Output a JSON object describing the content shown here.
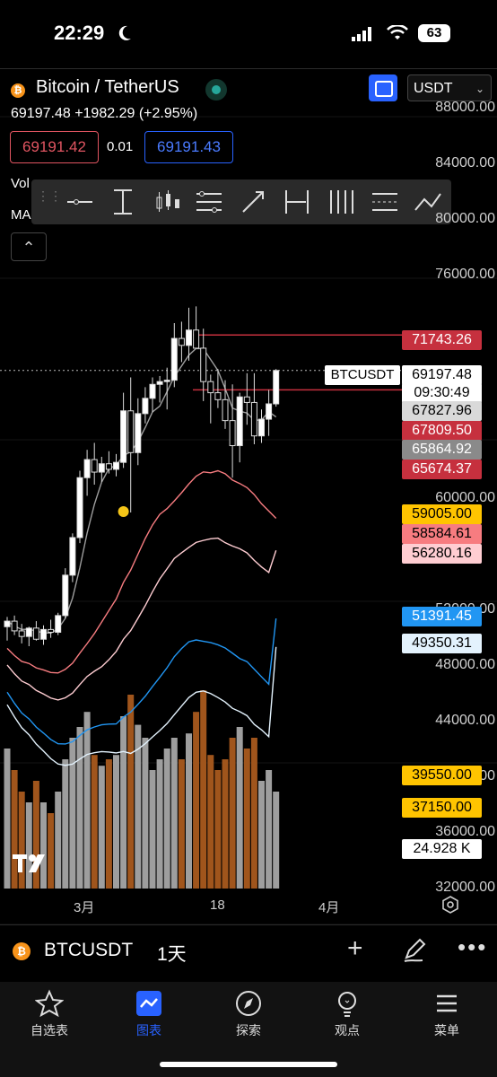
{
  "status_bar": {
    "time": "22:29",
    "battery": "63"
  },
  "header": {
    "title": "Bitcoin / TetherUS",
    "quote_currency": "USDT",
    "last_price": "69197.48",
    "change": "+1982.29 (+2.95%)",
    "bid": "69191.42",
    "spread": "0.01",
    "ask": "69191.43",
    "vol_label": "Vol",
    "ma_label": "MA"
  },
  "price_axis": [
    "88000.00",
    "84000.00",
    "80000.00",
    "76000.00",
    "60000.00",
    "52000.00",
    "48000.00",
    "44000.00",
    "40000.00",
    "36000.00",
    "32000.00"
  ],
  "price_tags": [
    {
      "label": "71743.26",
      "bg": "#c6303e",
      "fg": "#ffffff"
    },
    {
      "label": "69197.48",
      "bg": "#ffffff",
      "fg": "#000000"
    },
    {
      "label": "09:30:49",
      "bg": "#ffffff",
      "fg": "#000000"
    },
    {
      "label": "67827.96",
      "bg": "#d9d9d9",
      "fg": "#000000"
    },
    {
      "label": "67809.50",
      "bg": "#c6303e",
      "fg": "#ffffff"
    },
    {
      "label": "65864.92",
      "bg": "#8a8a8a",
      "fg": "#ffffff"
    },
    {
      "label": "65674.37",
      "bg": "#c6303e",
      "fg": "#ffffff"
    },
    {
      "label": "59005.00",
      "bg": "#ffc400",
      "fg": "#000000"
    },
    {
      "label": "58584.61",
      "bg": "#f77c80",
      "fg": "#000000"
    },
    {
      "label": "56280.16",
      "bg": "#ffcdd2",
      "fg": "#000000"
    },
    {
      "label": "51391.45",
      "bg": "#2196f3",
      "fg": "#ffffff"
    },
    {
      "label": "49350.31",
      "bg": "#e3f2fd",
      "fg": "#000000"
    },
    {
      "label": "39550.00",
      "bg": "#ffc400",
      "fg": "#000000"
    },
    {
      "label": "37150.00",
      "bg": "#ffc400",
      "fg": "#000000"
    },
    {
      "label": "24.928 K",
      "bg": "#ffffff",
      "fg": "#000000"
    }
  ],
  "symbol_label": "BTCUSDT",
  "x_axis": [
    "3月",
    "18",
    "4月"
  ],
  "bottom_bar": {
    "symbol": "BTCUSDT",
    "interval": "1天"
  },
  "tabs": [
    {
      "label": "自选表",
      "icon": "star-icon"
    },
    {
      "label": "图表",
      "icon": "chart-icon"
    },
    {
      "label": "探索",
      "icon": "compass-icon"
    },
    {
      "label": "观点",
      "icon": "lightbulb-icon"
    },
    {
      "label": "菜单",
      "icon": "menu-icon"
    }
  ],
  "colors": {
    "accent": "#2962ff",
    "up": "#ffffff",
    "down": "#ffffff",
    "vol_up": "#9e9e9e",
    "vol_down": "#a0551c"
  },
  "chart_data": {
    "type": "candlestick",
    "interval": "1天",
    "ylim": [
      32000,
      90000
    ],
    "candles": [
      [
        50800,
        51500,
        49800,
        51200
      ],
      [
        51200,
        51600,
        50200,
        50500
      ],
      [
        50500,
        51000,
        49600,
        50100
      ],
      [
        50100,
        50800,
        49400,
        50700
      ],
      [
        50700,
        51200,
        49800,
        49900
      ],
      [
        49900,
        50900,
        49500,
        50600
      ],
      [
        50600,
        51300,
        50000,
        50400
      ],
      [
        50400,
        51800,
        50200,
        51600
      ],
      [
        51600,
        55000,
        51400,
        54500
      ],
      [
        54500,
        57500,
        54000,
        57200
      ],
      [
        57200,
        62000,
        56800,
        61500
      ],
      [
        61500,
        63500,
        60200,
        62800
      ],
      [
        62800,
        64000,
        61000,
        61900
      ],
      [
        61900,
        63000,
        61200,
        62500
      ],
      [
        62500,
        63400,
        61800,
        62100
      ],
      [
        62100,
        63200,
        61600,
        62600
      ],
      [
        62600,
        67600,
        62200,
        66300
      ],
      [
        66300,
        68700,
        59000,
        63300
      ],
      [
        63300,
        67200,
        62400,
        66100
      ],
      [
        66100,
        68000,
        65400,
        67200
      ],
      [
        67200,
        68700,
        66200,
        68200
      ],
      [
        68200,
        68800,
        66900,
        68400
      ],
      [
        68400,
        69400,
        66400,
        68500
      ],
      [
        68500,
        72600,
        68000,
        71500
      ],
      [
        71500,
        72700,
        69800,
        71000
      ],
      [
        71000,
        73700,
        69900,
        72100
      ],
      [
        72100,
        73800,
        71200,
        70800
      ],
      [
        70800,
        72200,
        67000,
        68400
      ],
      [
        68400,
        68900,
        65400,
        67600
      ],
      [
        67600,
        69300,
        66500,
        67100
      ],
      [
        67100,
        68500,
        65000,
        65600
      ],
      [
        65600,
        68200,
        61500,
        63800
      ],
      [
        63800,
        67600,
        62600,
        67300
      ],
      [
        67300,
        69000,
        65300,
        66900
      ],
      [
        66900,
        69000,
        63900,
        64500
      ],
      [
        64500,
        66400,
        64000,
        65700
      ],
      [
        65700,
        67800,
        64500,
        66800
      ],
      [
        66800,
        69300,
        66600,
        69197.48
      ]
    ],
    "volume_rel": [
      0.65,
      0.55,
      0.45,
      0.4,
      0.5,
      0.4,
      0.35,
      0.45,
      0.6,
      0.7,
      0.75,
      0.82,
      0.62,
      0.57,
      0.6,
      0.62,
      0.8,
      0.9,
      0.76,
      0.7,
      0.55,
      0.6,
      0.65,
      0.7,
      0.6,
      0.72,
      0.82,
      0.92,
      0.62,
      0.55,
      0.6,
      0.7,
      0.75,
      0.65,
      0.7,
      0.5,
      0.55,
      0.45
    ],
    "moving_averages": [
      {
        "color": "#9e9e9e",
        "last": 65864.92
      },
      {
        "color": "#f77c80",
        "last": 58584.61
      },
      {
        "color": "#ffcdd2",
        "last": 56280.16
      },
      {
        "color": "#2196f3",
        "last": 51391.45
      },
      {
        "color": "#e3f2fd",
        "last": 49350.31
      }
    ],
    "horizontal_lines": [
      71743.26,
      67809.5
    ]
  }
}
